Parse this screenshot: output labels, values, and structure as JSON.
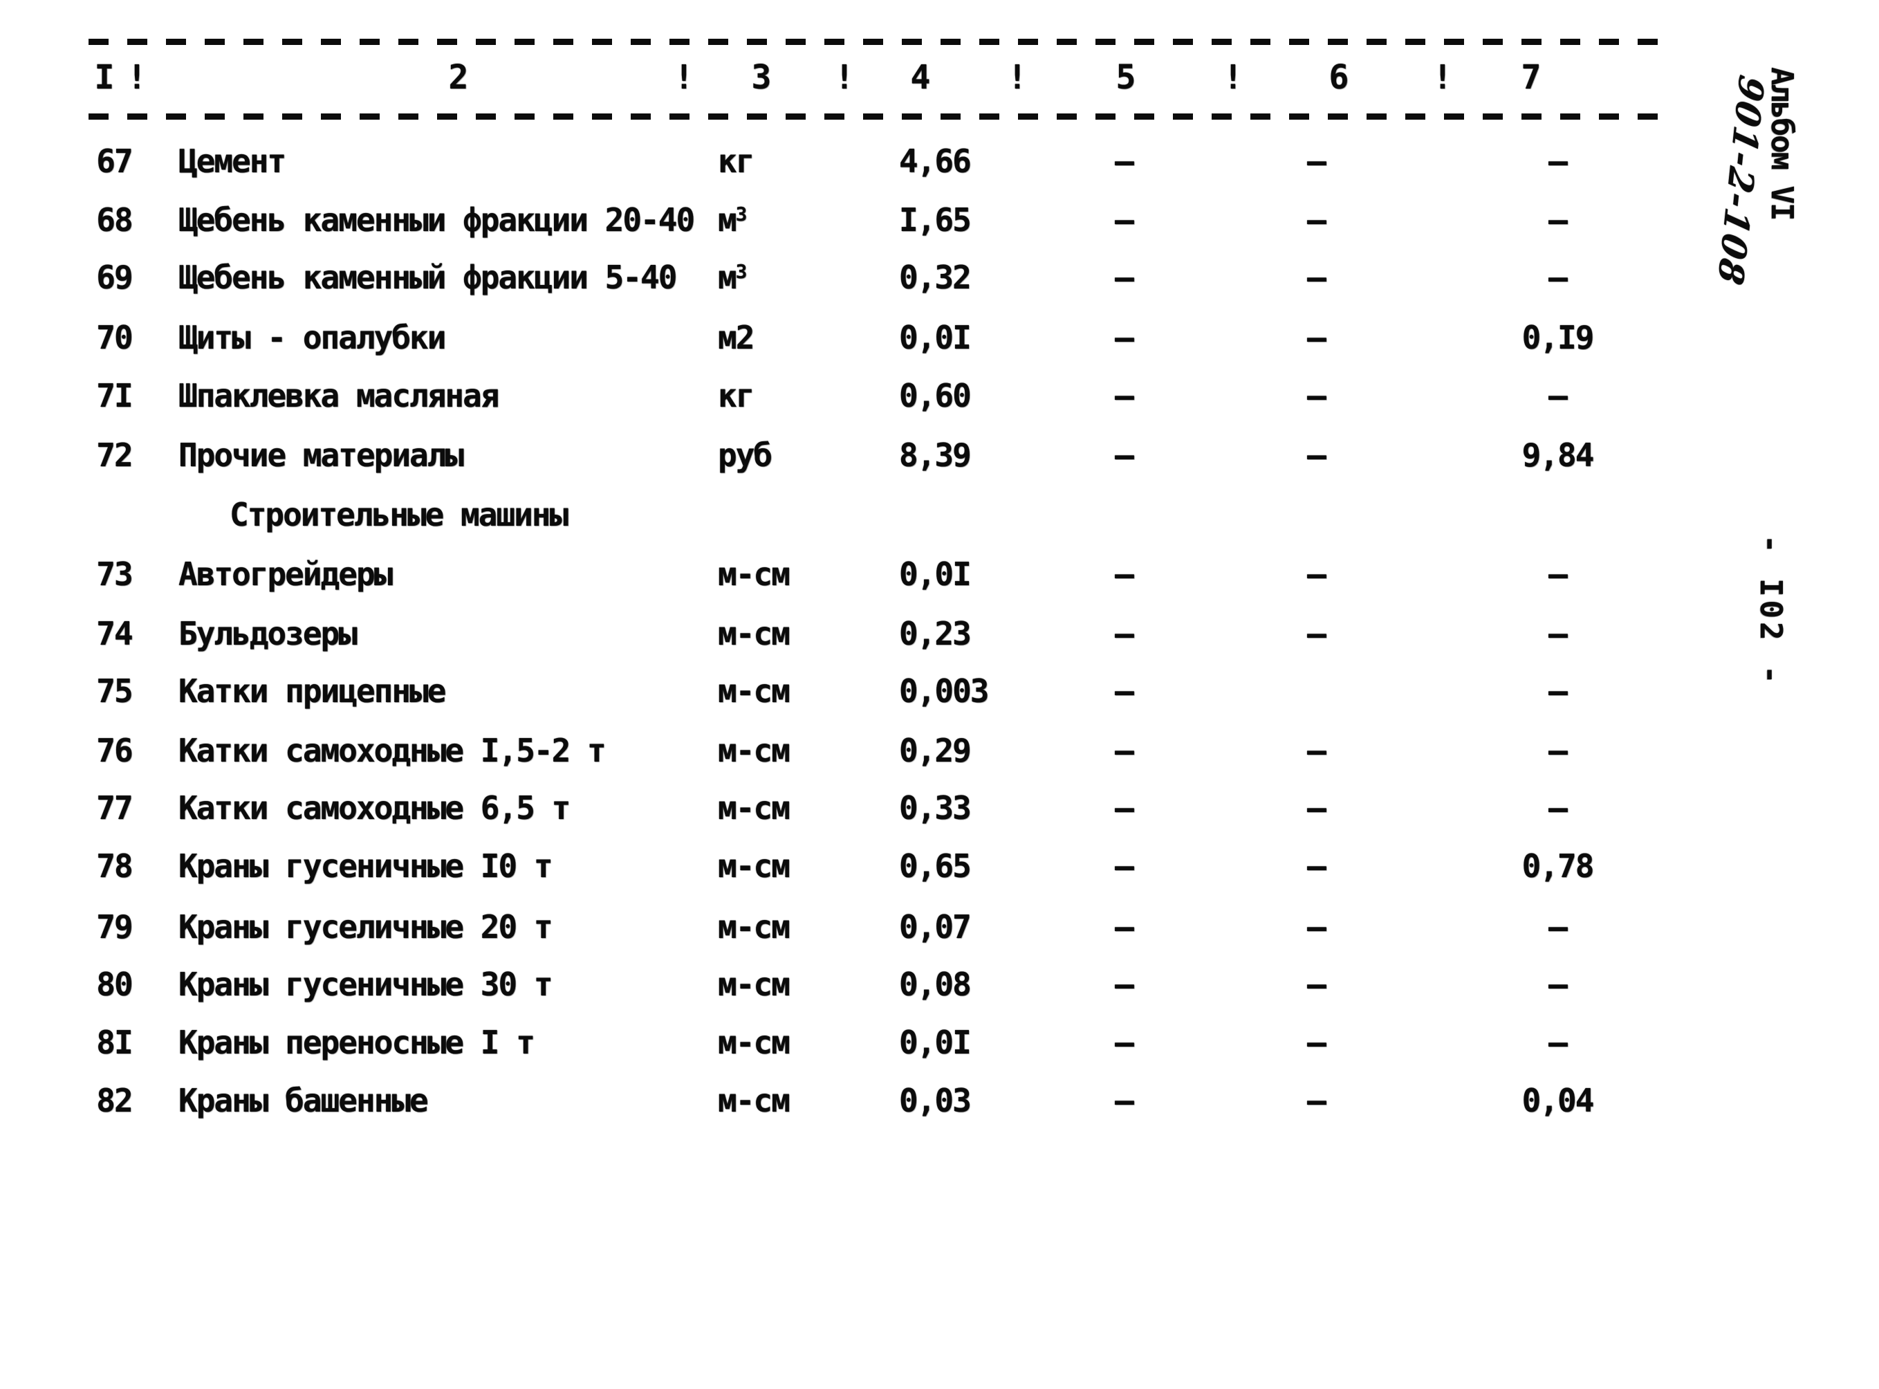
{
  "page": {
    "background": "#ffffff",
    "ink": "#0b0b0b"
  },
  "side_notes": {
    "album": "Альбом VI",
    "series": "901-2-108",
    "page_number": "- I02 -"
  },
  "table": {
    "header": {
      "columns": [
        "I",
        "2",
        "3",
        "4",
        "5",
        "6",
        "7"
      ],
      "separator": "!"
    },
    "section_header": "Строительные машины",
    "rows": [
      {
        "num": "67",
        "name": "Цемент",
        "unit": "кг",
        "unit_sup": "",
        "c4": "4,66",
        "c5": "–",
        "c6": "–",
        "c7": "–"
      },
      {
        "num": "68",
        "name": "Щебень каменныи фракции 20-40",
        "unit": "м",
        "unit_sup": "3",
        "c4": "I,65",
        "c5": "–",
        "c6": "–",
        "c7": "–"
      },
      {
        "num": "69",
        "name": "Щебень каменный фракции 5-40",
        "unit": "м",
        "unit_sup": "3",
        "c4": "0,32",
        "c5": "–",
        "c6": "–",
        "c7": "–"
      },
      {
        "num": "70",
        "name": "Щиты - опалубки",
        "unit": "м2",
        "unit_sup": "",
        "c4": "0,0I",
        "c5": "–",
        "c6": "–",
        "c7": "0,I9"
      },
      {
        "num": "7I",
        "name": "Шпаклевка масляная",
        "unit": "кг",
        "unit_sup": "",
        "c4": "0,60",
        "c5": "–",
        "c6": "–",
        "c7": "–"
      },
      {
        "num": "72",
        "name": "Прочие материалы",
        "unit": "руб",
        "unit_sup": "",
        "c4": "8,39",
        "c5": "–",
        "c6": "–",
        "c7": "9,84"
      },
      {
        "num": "73",
        "name": "Автогрейдеры",
        "unit": "м-см",
        "unit_sup": "",
        "c4": "0,0I",
        "c5": "–",
        "c6": "–",
        "c7": "–"
      },
      {
        "num": "74",
        "name": "Бульдозеры",
        "unit": "м-см",
        "unit_sup": "",
        "c4": "0,23",
        "c5": "–",
        "c6": "–",
        "c7": "–"
      },
      {
        "num": "75",
        "name": "Катки прицепные",
        "unit": "м-см",
        "unit_sup": "",
        "c4": "0,003",
        "c5": "–",
        "c6": "",
        "c7": "–"
      },
      {
        "num": "76",
        "name": "Катки самоходные I,5-2 т",
        "unit": "м-см",
        "unit_sup": "",
        "c4": "0,29",
        "c5": "–",
        "c6": "–",
        "c7": "–"
      },
      {
        "num": "77",
        "name": "Катки самоходные 6,5 т",
        "unit": "м-см",
        "unit_sup": "",
        "c4": "0,33",
        "c5": "–",
        "c6": "–",
        "c7": "–"
      },
      {
        "num": "78",
        "name": "Краны гусеничные I0 т",
        "unit": "м-см",
        "unit_sup": "",
        "c4": "0,65",
        "c5": "–",
        "c6": "–",
        "c7": "0,78"
      },
      {
        "num": "79",
        "name": "Краны гуселичные 20 т",
        "unit": "м-см",
        "unit_sup": "",
        "c4": "0,07",
        "c5": "–",
        "c6": "–",
        "c7": "–"
      },
      {
        "num": "80",
        "name": "Краны гусеничные 30 т",
        "unit": "м-см",
        "unit_sup": "",
        "c4": "0,08",
        "c5": "–",
        "c6": "–",
        "c7": "–"
      },
      {
        "num": "8I",
        "name": "Краны переносные I т",
        "unit": "м-см",
        "unit_sup": "",
        "c4": "0,0I",
        "c5": "–",
        "c6": "–",
        "c7": "–"
      },
      {
        "num": "82",
        "name": "Краны башенные",
        "unit": "м-см",
        "unit_sup": "",
        "c4": "0,03",
        "c5": "–",
        "c6": "–",
        "c7": "0,04"
      }
    ]
  }
}
